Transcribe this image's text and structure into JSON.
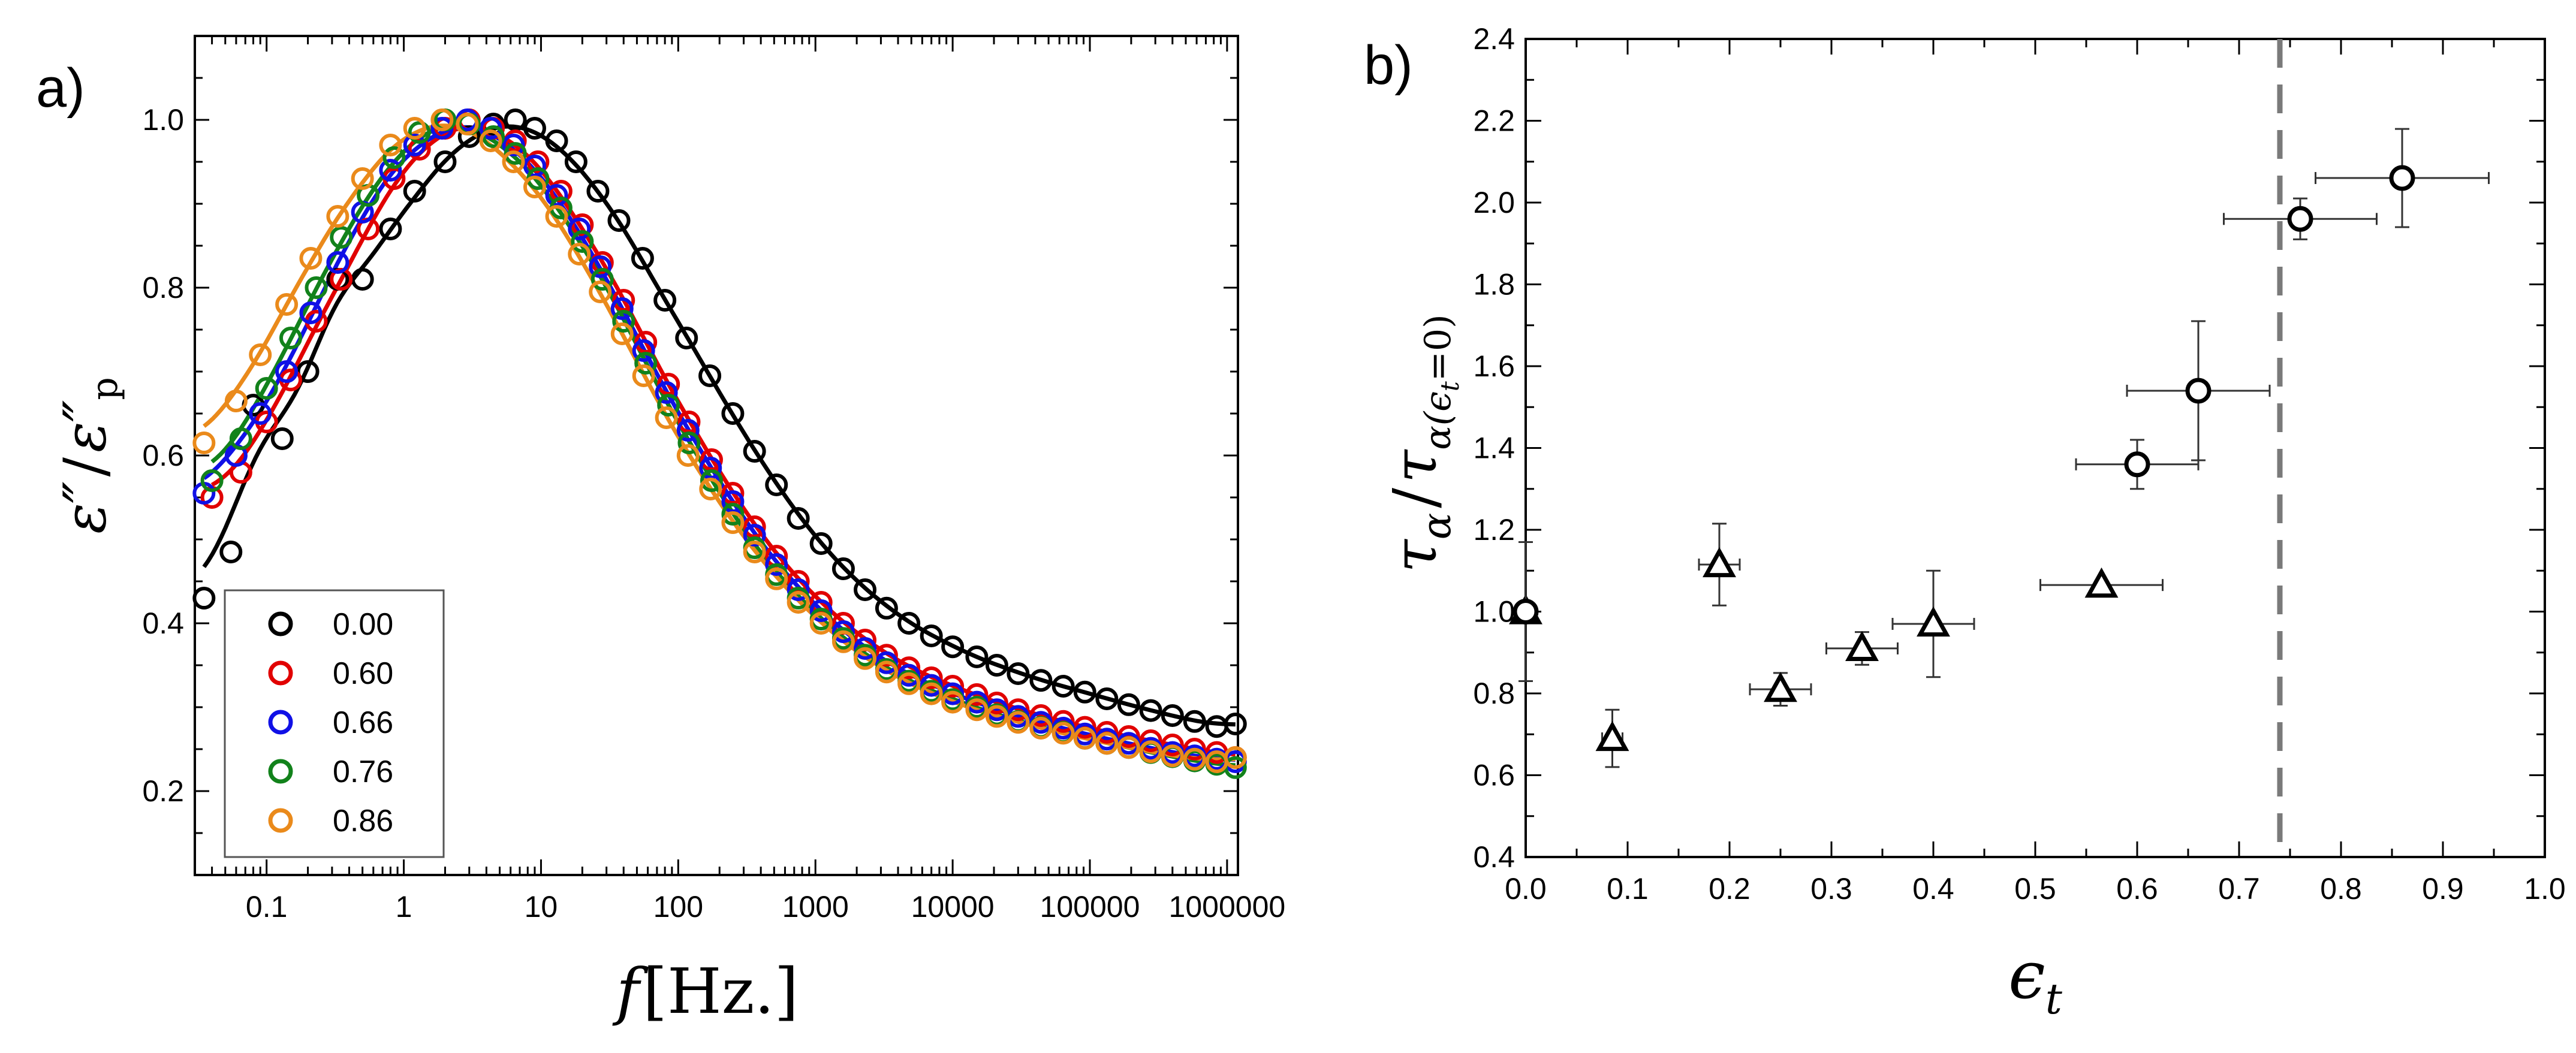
{
  "chart_data": [
    {
      "panel": "a)",
      "type": "scatter",
      "x_scale": "log",
      "xlabel_symbol": "f",
      "xlabel_unit": "[Hz.]",
      "ylabel_main": "ε",
      "ylabel_primes": "″",
      "ylabel_slash": "/",
      "ylabel_sub": "p",
      "xlim": [
        0.03,
        1200000
      ],
      "ylim": [
        0.1,
        1.1
      ],
      "x_ticks": [
        0.1,
        1,
        10,
        100,
        1000,
        10000,
        100000,
        1000000
      ],
      "x_tick_labels": [
        "0.1",
        "1",
        "10",
        "100",
        "1000",
        "10000",
        "100000",
        "1000000"
      ],
      "y_ticks": [
        0.2,
        0.4,
        0.6,
        0.8,
        1.0
      ],
      "y_tick_labels": [
        "0.2",
        "0.4",
        "0.6",
        "0.8",
        "1.0"
      ],
      "legend_placement": "bottom-left",
      "has_fit_lines": true,
      "series": [
        {
          "name": "0.00",
          "color": "#000000",
          "f_peak": 4.2,
          "width": 1.02,
          "low_amp": 0.06,
          "low_corner": 0.03,
          "high_floor": 0.24,
          "high_corner": 800000,
          "x": [
            0.035,
            0.055,
            0.08,
            0.13,
            0.2,
            0.33,
            0.5,
            0.8,
            1.2,
            2,
            3,
            4.5,
            6.5,
            9,
            13,
            18,
            26,
            37,
            55,
            80,
            115,
            170,
            250,
            360,
            520,
            750,
            1100,
            1600,
            2300,
            3300,
            4800,
            7000,
            10000,
            15000,
            21000,
            30000,
            44000,
            64000,
            92000,
            133000,
            192000,
            278000,
            400000,
            580000,
            840000,
            1150000
          ],
          "y": [
            0.43,
            0.485,
            0.66,
            0.62,
            0.7,
            0.81,
            0.81,
            0.87,
            0.915,
            0.95,
            0.98,
            0.995,
            1.0,
            0.99,
            0.975,
            0.95,
            0.915,
            0.88,
            0.835,
            0.785,
            0.74,
            0.695,
            0.65,
            0.605,
            0.565,
            0.525,
            0.495,
            0.465,
            0.44,
            0.418,
            0.4,
            0.385,
            0.372,
            0.36,
            0.35,
            0.34,
            0.332,
            0.325,
            0.318,
            0.31,
            0.303,
            0.296,
            0.29,
            0.283,
            0.277,
            0.28
          ]
        },
        {
          "name": "0.60",
          "color": "#e10000",
          "f_peak": 3.0,
          "width": 1.12,
          "low_amp": 0.05,
          "low_corner": 0.03,
          "high_floor": 0.205,
          "high_corner": 900000,
          "x": [
            0.04,
            0.065,
            0.1,
            0.15,
            0.23,
            0.35,
            0.55,
            0.85,
            1.3,
            2,
            3,
            4.5,
            6.5,
            9.5,
            14,
            20,
            28,
            40,
            58,
            85,
            120,
            175,
            250,
            360,
            520,
            750,
            1100,
            1600,
            2300,
            3300,
            4800,
            7000,
            10000,
            15000,
            21000,
            30000,
            44000,
            64000,
            92000,
            133000,
            192000,
            278000,
            400000,
            580000,
            840000,
            1150000
          ],
          "y": [
            0.55,
            0.58,
            0.64,
            0.69,
            0.76,
            0.81,
            0.87,
            0.93,
            0.965,
            0.99,
            1.0,
            0.99,
            0.975,
            0.95,
            0.915,
            0.875,
            0.83,
            0.785,
            0.735,
            0.685,
            0.64,
            0.595,
            0.555,
            0.515,
            0.48,
            0.45,
            0.425,
            0.4,
            0.38,
            0.362,
            0.347,
            0.335,
            0.325,
            0.315,
            0.305,
            0.297,
            0.29,
            0.283,
            0.276,
            0.27,
            0.265,
            0.26,
            0.255,
            0.25,
            0.246,
            0.24
          ]
        },
        {
          "name": "0.66",
          "color": "#1010e6",
          "f_peak": 2.9,
          "width": 1.13,
          "low_amp": 0.05,
          "low_corner": 0.03,
          "high_floor": 0.2,
          "high_corner": 900000,
          "x": [
            0.035,
            0.06,
            0.09,
            0.14,
            0.21,
            0.33,
            0.5,
            0.8,
            1.2,
            1.9,
            2.9,
            4.3,
            6.3,
            9,
            13,
            19,
            27,
            39,
            56,
            82,
            118,
            172,
            250,
            360,
            520,
            750,
            1100,
            1600,
            2300,
            3300,
            4800,
            7000,
            10000,
            15000,
            21000,
            30000,
            44000,
            64000,
            92000,
            133000,
            192000,
            278000,
            400000,
            580000,
            840000,
            1150000
          ],
          "y": [
            0.555,
            0.6,
            0.65,
            0.7,
            0.77,
            0.83,
            0.89,
            0.94,
            0.97,
            0.99,
            1.0,
            0.99,
            0.97,
            0.945,
            0.91,
            0.87,
            0.825,
            0.775,
            0.725,
            0.675,
            0.63,
            0.585,
            0.545,
            0.505,
            0.47,
            0.44,
            0.415,
            0.39,
            0.37,
            0.353,
            0.338,
            0.326,
            0.316,
            0.306,
            0.297,
            0.289,
            0.282,
            0.275,
            0.268,
            0.262,
            0.257,
            0.251,
            0.246,
            0.242,
            0.238,
            0.235
          ]
        },
        {
          "name": "0.76",
          "color": "#12821b",
          "f_peak": 2.6,
          "width": 1.15,
          "low_amp": 0.05,
          "low_corner": 0.03,
          "high_floor": 0.2,
          "high_corner": 900000,
          "x": [
            0.04,
            0.065,
            0.1,
            0.15,
            0.23,
            0.35,
            0.55,
            0.85,
            1.3,
            2,
            3,
            4.5,
            6.5,
            9.5,
            14,
            20,
            28,
            40,
            58,
            85,
            120,
            175,
            250,
            360,
            520,
            750,
            1100,
            1600,
            2300,
            3300,
            4800,
            7000,
            10000,
            15000,
            21000,
            30000,
            44000,
            64000,
            92000,
            133000,
            192000,
            278000,
            400000,
            580000,
            840000,
            1150000
          ],
          "y": [
            0.57,
            0.62,
            0.68,
            0.74,
            0.8,
            0.86,
            0.91,
            0.955,
            0.985,
            1.0,
            0.995,
            0.98,
            0.96,
            0.93,
            0.895,
            0.855,
            0.81,
            0.76,
            0.71,
            0.66,
            0.615,
            0.57,
            0.53,
            0.49,
            0.458,
            0.43,
            0.405,
            0.382,
            0.362,
            0.345,
            0.331,
            0.319,
            0.309,
            0.3,
            0.291,
            0.283,
            0.276,
            0.27,
            0.263,
            0.257,
            0.252,
            0.246,
            0.241,
            0.236,
            0.232,
            0.228
          ]
        },
        {
          "name": "0.86",
          "color": "#ea8a1b",
          "f_peak": 2.3,
          "width": 1.18,
          "low_amp": 0.06,
          "low_corner": 0.03,
          "high_floor": 0.2,
          "high_corner": 900000,
          "x": [
            0.035,
            0.06,
            0.09,
            0.14,
            0.21,
            0.33,
            0.5,
            0.8,
            1.2,
            1.9,
            2.9,
            4.3,
            6.3,
            9,
            13,
            19,
            27,
            39,
            56,
            82,
            118,
            172,
            250,
            360,
            520,
            750,
            1100,
            1600,
            2300,
            3300,
            4800,
            7000,
            10000,
            15000,
            21000,
            30000,
            44000,
            64000,
            92000,
            133000,
            192000,
            278000,
            400000,
            580000,
            840000,
            1150000
          ],
          "y": [
            0.615,
            0.665,
            0.72,
            0.78,
            0.835,
            0.885,
            0.93,
            0.97,
            0.99,
            1.0,
            0.995,
            0.975,
            0.95,
            0.92,
            0.885,
            0.84,
            0.795,
            0.745,
            0.695,
            0.645,
            0.6,
            0.56,
            0.52,
            0.485,
            0.453,
            0.425,
            0.4,
            0.378,
            0.358,
            0.342,
            0.328,
            0.316,
            0.306,
            0.297,
            0.289,
            0.282,
            0.275,
            0.269,
            0.263,
            0.257,
            0.252,
            0.247,
            0.242,
            0.238,
            0.235,
            0.24
          ]
        }
      ]
    },
    {
      "panel": "b)",
      "type": "scatter",
      "xlabel": "ϵ",
      "xlabel_sub": "t",
      "ylabel": "τ",
      "ylabel_sub": "α",
      "ylabel_slash": "/",
      "ylabel_sub2": "α(ϵ",
      "ylabel_sub2_t": "t",
      "ylabel_sub2_end": "=0)",
      "xlim": [
        0.0,
        1.0
      ],
      "ylim": [
        0.4,
        2.4
      ],
      "x_ticks": [
        0.0,
        0.1,
        0.2,
        0.3,
        0.4,
        0.5,
        0.6,
        0.7,
        0.8,
        0.9,
        1.0
      ],
      "x_tick_labels": [
        "0.0",
        "0.1",
        "0.2",
        "0.3",
        "0.4",
        "0.5",
        "0.6",
        "0.7",
        "0.8",
        "0.9",
        "1.0"
      ],
      "y_ticks": [
        0.4,
        0.6,
        0.8,
        1.0,
        1.2,
        1.4,
        1.6,
        1.8,
        2.0,
        2.2,
        2.4
      ],
      "y_tick_labels": [
        "0.4",
        "0.6",
        "0.8",
        "1.0",
        "1.2",
        "1.4",
        "1.6",
        "1.8",
        "2.0",
        "2.2",
        "2.4"
      ],
      "threshold_x": 0.74,
      "threshold_style": "dashed gray vertical line",
      "triangles": [
        {
          "x": 0.0,
          "y": 1.0,
          "xerr": 0.01,
          "yerr": 0.17
        },
        {
          "x": 0.085,
          "y": 0.69,
          "xerr": 0.01,
          "yerr": 0.07
        },
        {
          "x": 0.19,
          "y": 1.115,
          "xerr": 0.02,
          "yerr": 0.1
        },
        {
          "x": 0.25,
          "y": 0.81,
          "xerr": 0.03,
          "yerr": 0.04
        },
        {
          "x": 0.33,
          "y": 0.91,
          "xerr": 0.035,
          "yerr": 0.04
        },
        {
          "x": 0.4,
          "y": 0.97,
          "xerr": 0.04,
          "yerr": 0.13
        },
        {
          "x": 0.565,
          "y": 1.065,
          "xerr": 0.06,
          "yerr": 0.01
        }
      ],
      "circles": [
        {
          "x": 0.0,
          "y": 1.0,
          "xerr": 0.01,
          "yerr": 0.17
        },
        {
          "x": 0.6,
          "y": 1.36,
          "xerr": 0.06,
          "yerr": 0.06
        },
        {
          "x": 0.66,
          "y": 1.54,
          "xerr": 0.07,
          "yerr": 0.17
        },
        {
          "x": 0.76,
          "y": 1.96,
          "xerr": 0.075,
          "yerr": 0.05
        },
        {
          "x": 0.86,
          "y": 2.06,
          "xerr": 0.085,
          "yerr": 0.12
        }
      ]
    }
  ]
}
